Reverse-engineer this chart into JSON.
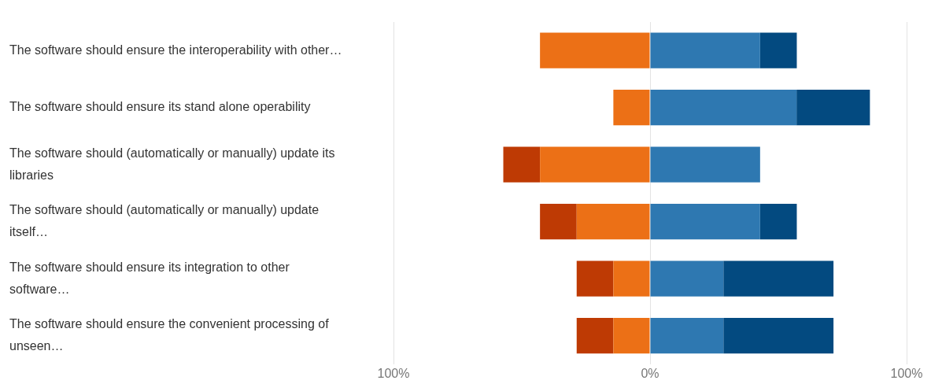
{
  "chart_data": {
    "type": "bar",
    "orientation": "horizontal",
    "stacked": true,
    "grid": "x",
    "legend": false,
    "categories": [
      "The software should ensure the interoperability with other…",
      "The software should ensure its stand alone operability",
      "The software should (automatically or manually) update its libraries",
      "The software should (automatically or manually) update itself…",
      "The software should ensure its integration to other software…",
      "The software should ensure the convenient processing of unseen…"
    ],
    "series": [
      {
        "color": "#ec7016",
        "values": [
          -42.9,
          -14.3,
          -42.9,
          -28.6,
          -14.3,
          -14.3
        ]
      },
      {
        "color": "#be3a04",
        "values": [
          null,
          null,
          -14.3,
          -14.3,
          -14.3,
          -14.3
        ]
      },
      {
        "color": "#2e78b1",
        "values": [
          42.9,
          57.1,
          42.9,
          42.9,
          28.6,
          28.6
        ]
      },
      {
        "color": "#034a80",
        "values": [
          14.3,
          28.6,
          null,
          14.3,
          42.9,
          42.9
        ]
      }
    ],
    "xlim": [
      -100,
      100
    ],
    "xticks": [
      {
        "value": -100,
        "label": "100%"
      },
      {
        "value": 0,
        "label": "0%"
      },
      {
        "value": 100,
        "label": "100%"
      }
    ]
  }
}
